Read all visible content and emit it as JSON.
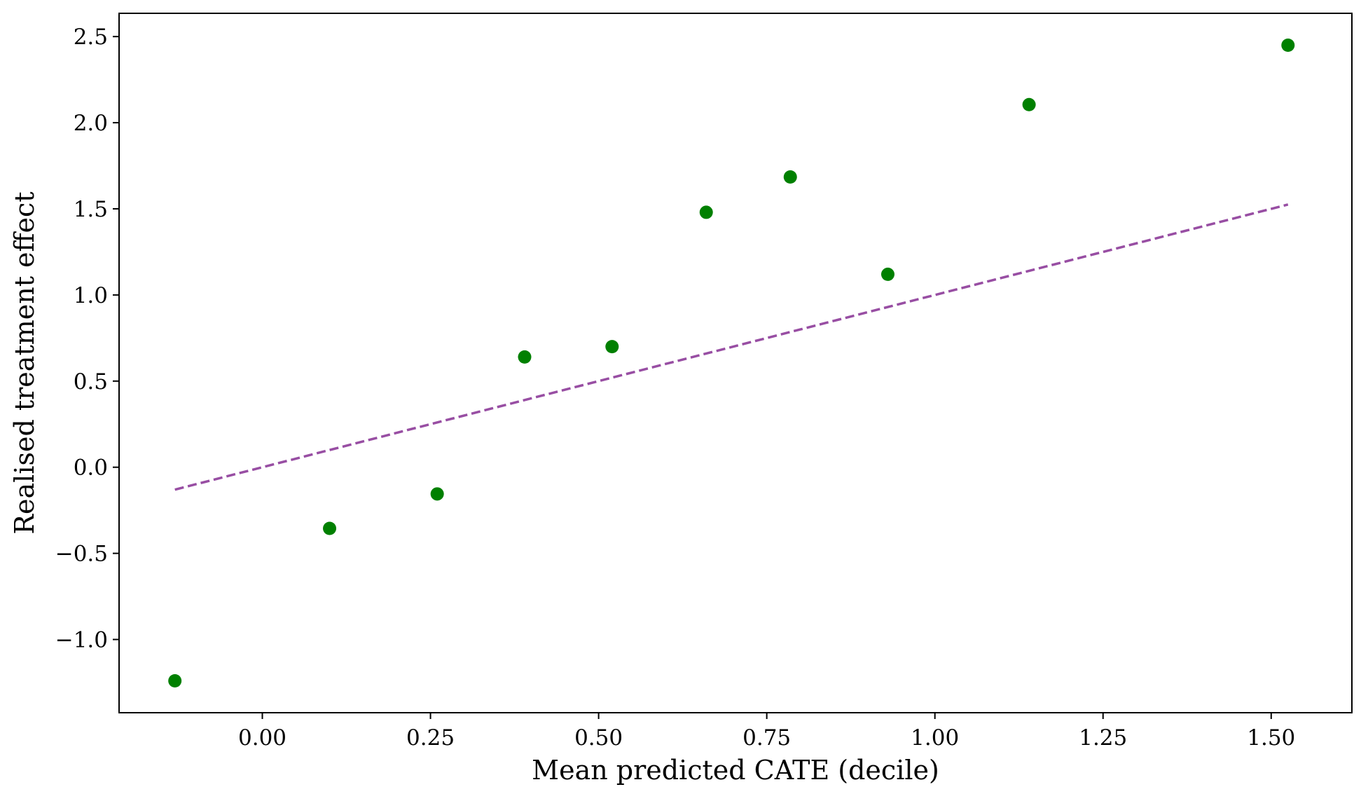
{
  "chart_data": {
    "type": "scatter",
    "title": "",
    "xlabel": "Mean predicted CATE (decile)",
    "ylabel": "Realised treatment effect",
    "xlim": [
      -0.213,
      1.62
    ],
    "ylim": [
      -1.425,
      2.635
    ],
    "xticks": [
      0.0,
      0.25,
      0.5,
      0.75,
      1.0,
      1.25,
      1.5
    ],
    "xtick_labels": [
      "0.00",
      "0.25",
      "0.50",
      "0.75",
      "1.00",
      "1.25",
      "1.50"
    ],
    "yticks": [
      -1.0,
      -0.5,
      0.0,
      0.5,
      1.0,
      1.5,
      2.0,
      2.5
    ],
    "ytick_labels": [
      "−1.0",
      "−0.5",
      "0.0",
      "0.5",
      "1.0",
      "1.5",
      "2.0",
      "2.5"
    ],
    "grid": false,
    "series": [
      {
        "type": "scatter",
        "color": "#008000",
        "x": [
          -0.13,
          0.1,
          0.26,
          0.39,
          0.52,
          0.66,
          0.785,
          0.93,
          1.14,
          1.525
        ],
        "y": [
          -1.24,
          -0.355,
          -0.155,
          0.64,
          0.7,
          1.48,
          1.685,
          1.12,
          2.105,
          2.45
        ]
      },
      {
        "type": "line",
        "style": "dashed",
        "color": "#984ea3",
        "x": [
          -0.13,
          1.525
        ],
        "y": [
          -0.13,
          1.525
        ]
      }
    ]
  }
}
